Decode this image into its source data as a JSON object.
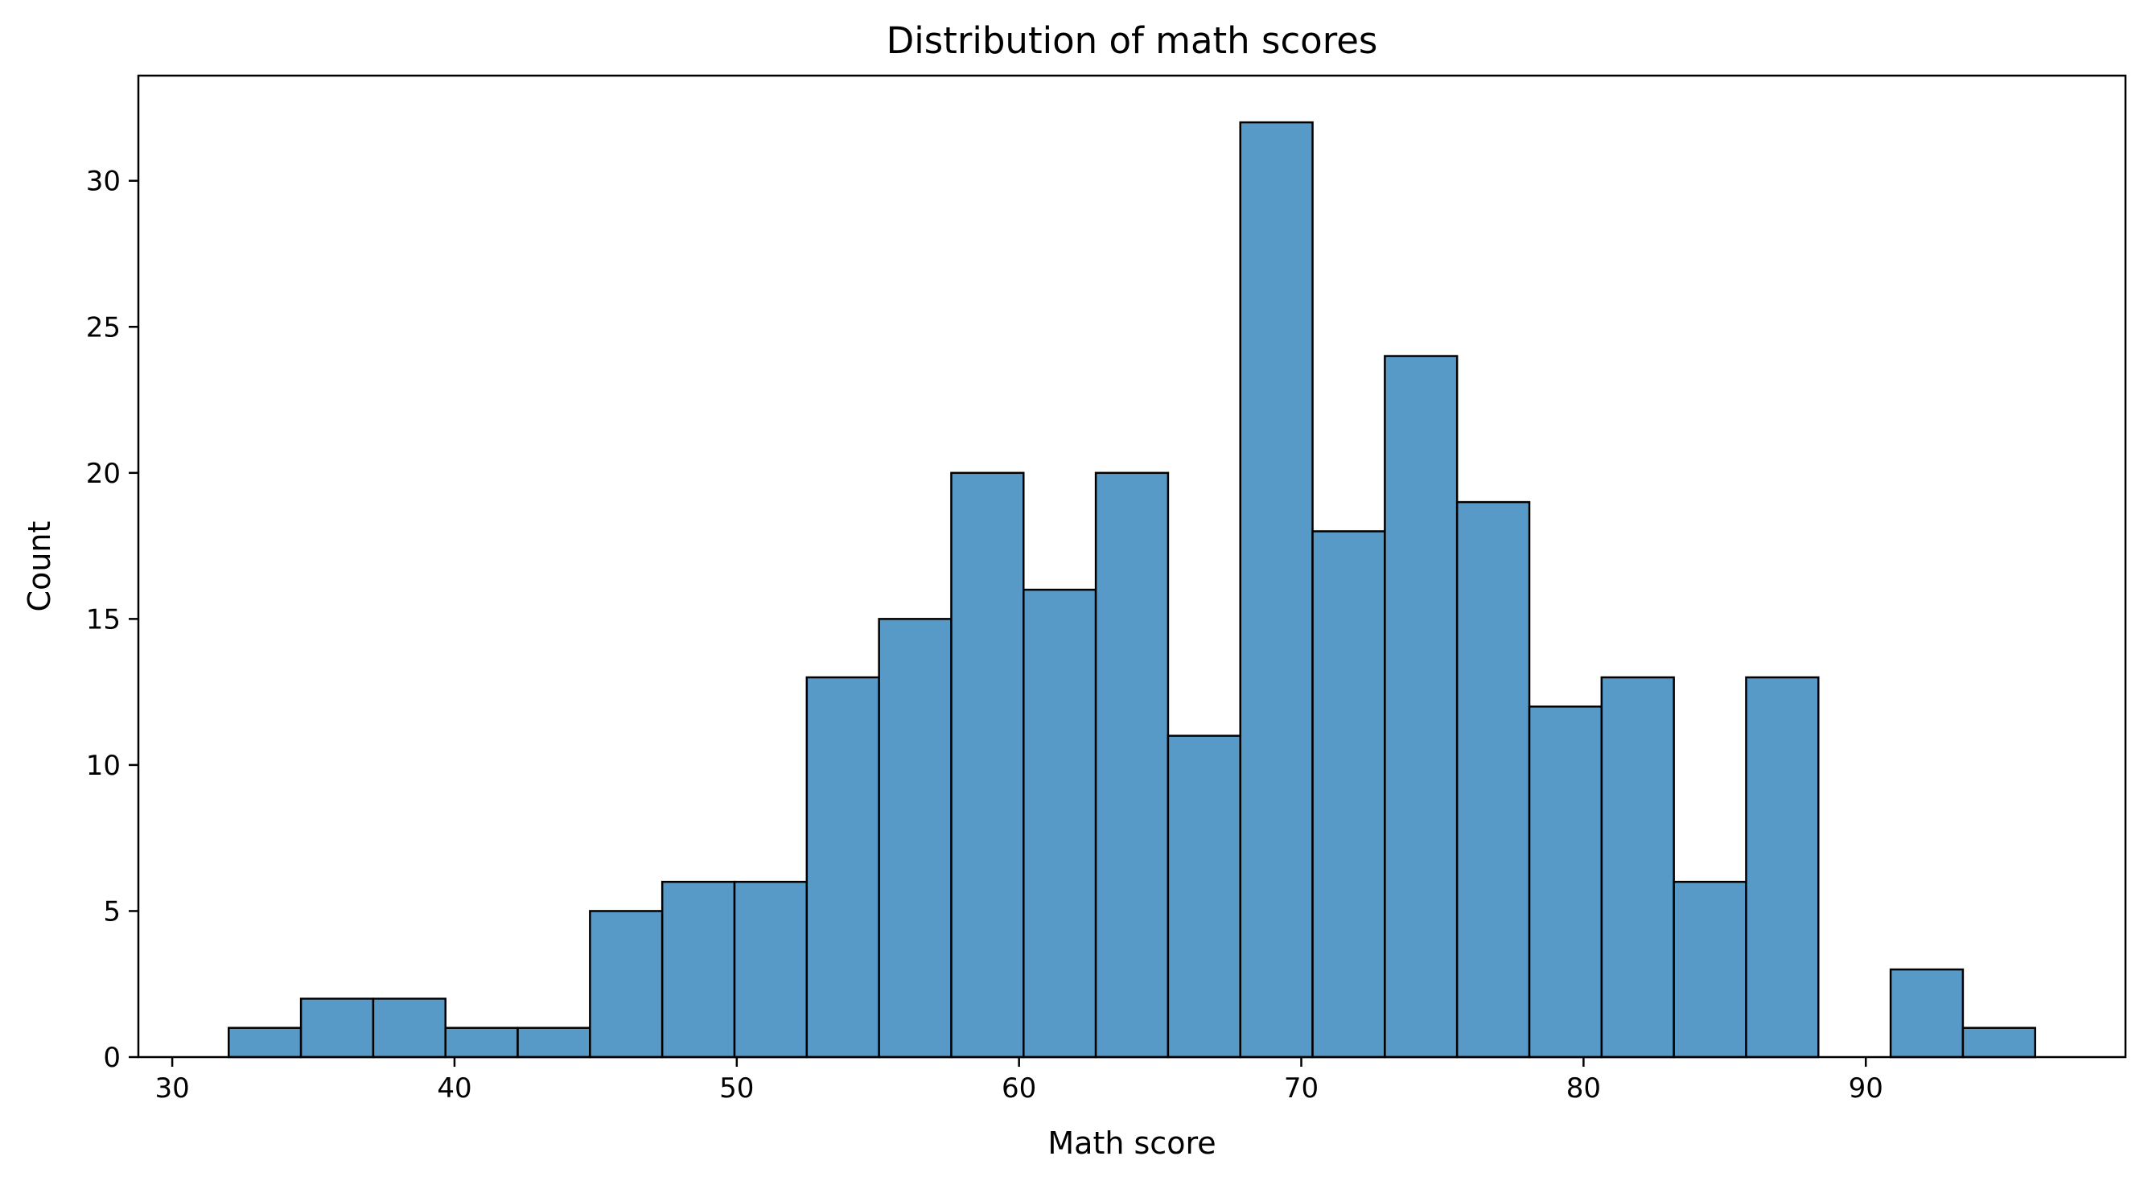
{
  "chart_data": {
    "type": "bar",
    "title": "Distribution of math scores",
    "xlabel": "Math score",
    "ylabel": "Count",
    "xlim": [
      28.8,
      99.2
    ],
    "ylim": [
      0,
      33.6
    ],
    "x_ticks": [
      30,
      40,
      50,
      60,
      70,
      80,
      90
    ],
    "y_ticks": [
      0,
      5,
      10,
      15,
      20,
      25,
      30
    ],
    "grid": false,
    "legend": "none",
    "bar_color": "#5799c7",
    "edge_color": "#000000",
    "bins": [
      {
        "x0": 32.0,
        "x1": 34.56,
        "count": 1
      },
      {
        "x0": 34.56,
        "x1": 37.12,
        "count": 2
      },
      {
        "x0": 37.12,
        "x1": 39.68,
        "count": 2
      },
      {
        "x0": 39.68,
        "x1": 42.24,
        "count": 1
      },
      {
        "x0": 42.24,
        "x1": 44.8,
        "count": 1
      },
      {
        "x0": 44.8,
        "x1": 47.36,
        "count": 5
      },
      {
        "x0": 47.36,
        "x1": 49.92,
        "count": 6
      },
      {
        "x0": 49.92,
        "x1": 52.48,
        "count": 6
      },
      {
        "x0": 52.48,
        "x1": 55.04,
        "count": 13
      },
      {
        "x0": 55.04,
        "x1": 57.6,
        "count": 15
      },
      {
        "x0": 57.6,
        "x1": 60.16,
        "count": 20
      },
      {
        "x0": 60.16,
        "x1": 62.72,
        "count": 16
      },
      {
        "x0": 62.72,
        "x1": 65.28,
        "count": 20
      },
      {
        "x0": 65.28,
        "x1": 67.84,
        "count": 11
      },
      {
        "x0": 67.84,
        "x1": 70.4,
        "count": 32
      },
      {
        "x0": 70.4,
        "x1": 72.96,
        "count": 18
      },
      {
        "x0": 72.96,
        "x1": 75.52,
        "count": 24
      },
      {
        "x0": 75.52,
        "x1": 78.08,
        "count": 19
      },
      {
        "x0": 78.08,
        "x1": 80.64,
        "count": 12
      },
      {
        "x0": 80.64,
        "x1": 83.2,
        "count": 13
      },
      {
        "x0": 83.2,
        "x1": 85.76,
        "count": 6
      },
      {
        "x0": 85.76,
        "x1": 88.32,
        "count": 13
      },
      {
        "x0": 88.32,
        "x1": 90.88,
        "count": 0
      },
      {
        "x0": 90.88,
        "x1": 93.44,
        "count": 3
      },
      {
        "x0": 93.44,
        "x1": 96.0,
        "count": 1
      }
    ]
  }
}
